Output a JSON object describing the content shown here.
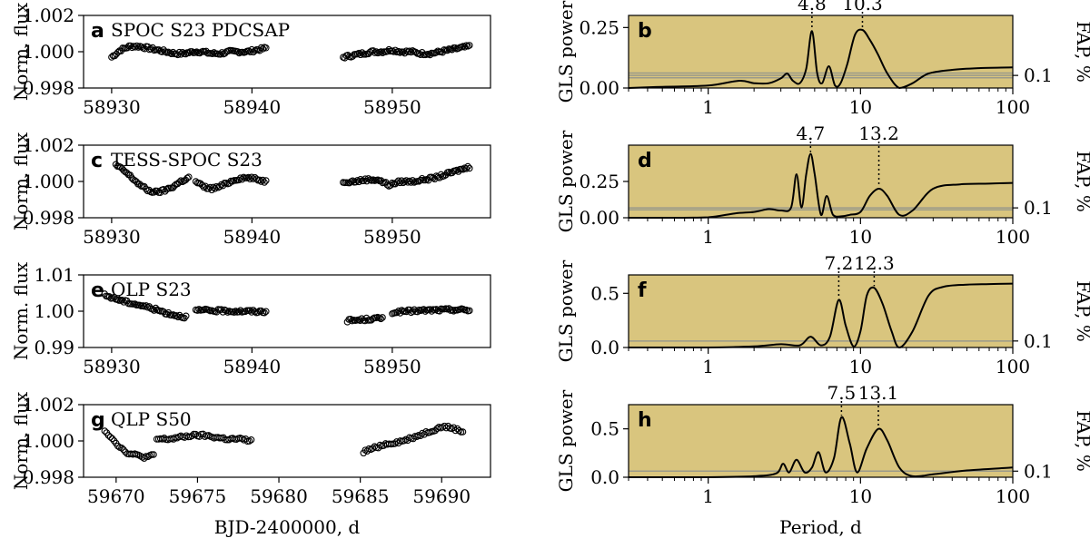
{
  "chart_data": [
    {
      "type": "scatter",
      "panel": "a",
      "label": "SPOC S23 PDCSAP",
      "ylabel": "Norm. flux",
      "xlim": [
        58928,
        58957
      ],
      "ylim": [
        0.998,
        1.002
      ],
      "xticks": [
        58930,
        58940,
        58950
      ],
      "yticks": [
        0.998,
        1.0,
        1.002
      ],
      "xtick_labels": [
        "58930",
        "58940",
        "58950"
      ],
      "ytick_labels": [
        "0.998",
        "1.000",
        "1.002"
      ],
      "segments": [
        {
          "x_start": 58930.0,
          "x_end": 58941.0,
          "y_points": [
            0.9997,
            1.0001,
            1.0003,
            1.0003,
            1.0002,
            1.0001,
            1.0,
            0.9999,
            0.9999,
            1.0,
            1.0,
            0.9999,
            0.9999,
            1.0,
            1.0,
            1.0,
            1.0001,
            1.0002
          ]
        },
        {
          "x_start": 58946.5,
          "x_end": 58955.5,
          "y_points": [
            0.9997,
            0.9998,
            0.9999,
            1.0,
            1.0,
            1.0001,
            1.0,
            1.0,
            0.9999,
            0.9999,
            1.0,
            1.0001,
            1.0002,
            1.0003
          ]
        }
      ]
    },
    {
      "type": "scatter",
      "panel": "c",
      "label": "TESS-SPOC S23",
      "ylabel": "Norm. flux",
      "xlim": [
        58928,
        58957
      ],
      "ylim": [
        0.998,
        1.002
      ],
      "xticks": [
        58930,
        58940,
        58950
      ],
      "yticks": [
        0.998,
        1.0,
        1.002
      ],
      "xtick_labels": [
        "58930",
        "58940",
        "58950"
      ],
      "ytick_labels": [
        "0.998",
        "1.000",
        "1.002"
      ],
      "segments": [
        {
          "x_start": 58930.3,
          "x_end": 58935.5,
          "y_points": [
            1.0009,
            1.0006,
            1.0002,
            0.9998,
            0.9995,
            0.9994,
            0.9995,
            0.9997,
            1.0,
            1.0002
          ]
        },
        {
          "x_start": 58936.0,
          "x_end": 58941.0,
          "y_points": [
            1.0,
            0.9997,
            0.9996,
            0.9997,
            0.9999,
            1.0001,
            1.0002,
            1.0002,
            1.0001,
            1.0
          ]
        },
        {
          "x_start": 58946.5,
          "x_end": 58955.5,
          "y_points": [
            1.0,
            1.0,
            1.0001,
            1.0001,
            0.9998,
            1.0,
            1.0,
            1.0001,
            1.0002,
            1.0004,
            1.0006,
            1.0008
          ]
        }
      ]
    },
    {
      "type": "scatter",
      "panel": "e",
      "label": "QLP S23",
      "ylabel": "Norm. flux",
      "xlim": [
        58928,
        58957
      ],
      "ylim": [
        0.99,
        1.01
      ],
      "xticks": [
        58930,
        58940,
        58950
      ],
      "yticks": [
        0.99,
        1.0,
        1.01
      ],
      "xtick_labels": [
        "58930",
        "58940",
        "58950"
      ],
      "ytick_labels": [
        "0.99",
        "1.00",
        "1.01"
      ],
      "segments": [
        {
          "x_start": 58929.5,
          "x_end": 58935.3,
          "y_points": [
            1.0044,
            1.0036,
            1.0028,
            1.0022,
            1.0016,
            1.001,
            1.0002,
            0.9994,
            0.9988,
            0.9984
          ]
        },
        {
          "x_start": 58936.0,
          "x_end": 58941.0,
          "y_points": [
            1.0002,
            1.0002,
            1.0001,
            1.0001,
            1.0,
            1.0,
            0.9999,
            0.9999
          ]
        },
        {
          "x_start": 58946.8,
          "x_end": 58949.3,
          "y_points": [
            0.9974,
            0.9975,
            0.9977,
            0.9979,
            0.9981
          ]
        },
        {
          "x_start": 58950.0,
          "x_end": 58955.5,
          "y_points": [
            0.9997,
            0.9999,
            1.0001,
            1.0002,
            1.0003,
            1.0004,
            1.0004,
            1.0003
          ]
        }
      ]
    },
    {
      "type": "scatter",
      "panel": "g",
      "label": "QLP S50",
      "ylabel": "Norm. flux",
      "xlabel": "BJD-2400000, d",
      "xlim": [
        59668,
        59693
      ],
      "ylim": [
        0.998,
        1.002
      ],
      "xticks": [
        59670,
        59675,
        59680,
        59685,
        59690
      ],
      "yticks": [
        0.998,
        1.0,
        1.002
      ],
      "xtick_labels": [
        "59670",
        "59675",
        "59680",
        "59685",
        "59690"
      ],
      "ytick_labels": [
        "0.998",
        "1.000",
        "1.002"
      ],
      "segments": [
        {
          "x_start": 59669.3,
          "x_end": 59672.3,
          "y_points": [
            1.0006,
            1.0001,
            0.9996,
            0.9993,
            0.9992,
            0.9991,
            0.9992
          ]
        },
        {
          "x_start": 59672.5,
          "x_end": 59678.3,
          "y_points": [
            1.0001,
            1.0001,
            1.0002,
            1.0003,
            1.0003,
            1.0002,
            1.0001,
            1.0001,
            1.0
          ]
        },
        {
          "x_start": 59685.2,
          "x_end": 59691.3,
          "y_points": [
            0.9994,
            0.9996,
            0.9998,
            0.9999,
            1.0,
            1.0002,
            1.0004,
            1.0006,
            1.0008,
            1.0007,
            1.0005
          ]
        }
      ]
    },
    {
      "type": "line",
      "panel": "b",
      "ylabel": "GLS power",
      "ylabel_right": "FAP, %",
      "right_tick_label": "0.1",
      "xscale": "log",
      "xlim": [
        0.3,
        100
      ],
      "ylim": [
        0,
        0.3
      ],
      "yticks": [
        0.0,
        0.25
      ],
      "ytick_labels": [
        "0.00",
        "0.25"
      ],
      "xtick_labels": [
        "1",
        "10",
        "100"
      ],
      "fap_levels": [
        0.042,
        0.052,
        0.062
      ],
      "peak_labels": [
        {
          "period": 4.8,
          "text": "4.8"
        },
        {
          "period": 10.3,
          "text": "10.3"
        }
      ],
      "curve_period": [
        0.3,
        0.5,
        1.0,
        1.6,
        2.0,
        2.5,
        3.0,
        3.3,
        3.6,
        4.0,
        4.4,
        4.8,
        5.2,
        5.6,
        6.2,
        6.8,
        7.4,
        8.2,
        9.2,
        10.3,
        11.5,
        13.0,
        15.0,
        18.0,
        22.0,
        28.0,
        40.0,
        60.0,
        100.0
      ],
      "curve_power": [
        0.0,
        0.005,
        0.01,
        0.03,
        0.02,
        0.02,
        0.04,
        0.06,
        0.03,
        0.02,
        0.08,
        0.235,
        0.06,
        0.02,
        0.09,
        0.01,
        0.02,
        0.1,
        0.22,
        0.24,
        0.2,
        0.14,
        0.06,
        0.0,
        0.02,
        0.06,
        0.075,
        0.082,
        0.085
      ]
    },
    {
      "type": "line",
      "panel": "d",
      "ylabel": "GLS power",
      "ylabel_right": "FAP, %",
      "right_tick_label": "0.1",
      "xscale": "log",
      "xlim": [
        0.3,
        100
      ],
      "ylim": [
        0,
        0.5
      ],
      "yticks": [
        0.0,
        0.25
      ],
      "ytick_labels": [
        "0.00",
        "0.25"
      ],
      "xtick_labels": [
        "1",
        "10",
        "100"
      ],
      "fap_levels": [
        0.055,
        0.068
      ],
      "peak_labels": [
        {
          "period": 4.7,
          "text": "4.7"
        },
        {
          "period": 13.2,
          "text": "13.2"
        }
      ],
      "curve_period": [
        0.3,
        0.6,
        1.0,
        1.5,
        2.0,
        2.5,
        3.0,
        3.5,
        3.8,
        4.1,
        4.4,
        4.7,
        5.0,
        5.5,
        6.0,
        6.6,
        7.5,
        8.5,
        10.0,
        11.5,
        13.2,
        15.0,
        18.0,
        22.0,
        30.0,
        45.0,
        70.0,
        100.0
      ],
      "curve_power": [
        0.0,
        0.0,
        0.003,
        0.03,
        0.04,
        0.06,
        0.05,
        0.07,
        0.3,
        0.07,
        0.3,
        0.44,
        0.3,
        0.02,
        0.15,
        0.02,
        0.01,
        0.02,
        0.04,
        0.15,
        0.2,
        0.15,
        0.02,
        0.05,
        0.2,
        0.23,
        0.235,
        0.24
      ]
    },
    {
      "type": "line",
      "panel": "f",
      "ylabel": "GLS power",
      "ylabel_right": "FAP, %",
      "right_tick_label": "0.1",
      "xscale": "log",
      "xlim": [
        0.3,
        100
      ],
      "ylim": [
        0,
        0.67
      ],
      "yticks": [
        0.0,
        0.5
      ],
      "ytick_labels": [
        "0.0",
        "0.5"
      ],
      "xtick_labels": [
        "1",
        "10",
        "100"
      ],
      "fap_levels": [
        0.06
      ],
      "peak_labels": [
        {
          "period": 7.2,
          "text": "7.2"
        },
        {
          "period": 12.3,
          "text": "12.3"
        }
      ],
      "curve_period": [
        0.3,
        1.0,
        2.0,
        3.0,
        4.0,
        4.7,
        5.5,
        6.3,
        7.2,
        8.0,
        9.0,
        10.0,
        11.0,
        12.3,
        14.0,
        16.0,
        18.0,
        22.0,
        28.0,
        35.0,
        50.0,
        70.0,
        100.0
      ],
      "curve_power": [
        0.0,
        0.0,
        0.01,
        0.03,
        0.02,
        0.1,
        0.02,
        0.1,
        0.44,
        0.2,
        0.01,
        0.15,
        0.48,
        0.55,
        0.4,
        0.15,
        0.0,
        0.15,
        0.48,
        0.56,
        0.58,
        0.585,
        0.59
      ]
    },
    {
      "type": "line",
      "panel": "h",
      "ylabel": "GLS power",
      "ylabel_right": "FAP, %",
      "right_tick_label": "0.1",
      "xscale": "log",
      "xlim": [
        0.3,
        100
      ],
      "ylim": [
        0,
        0.75
      ],
      "yticks": [
        0.0,
        0.5
      ],
      "ytick_labels": [
        "0.0",
        "0.5"
      ],
      "xtick_labels": [
        "1",
        "10",
        "100"
      ],
      "fap_levels": [
        0.063
      ],
      "peak_labels": [
        {
          "period": 7.5,
          "text": "7.5"
        },
        {
          "period": 13.1,
          "text": "13.1"
        }
      ],
      "curve_period": [
        0.3,
        1.0,
        2.0,
        2.8,
        3.1,
        3.4,
        3.8,
        4.3,
        4.8,
        5.3,
        5.9,
        6.7,
        7.5,
        8.5,
        9.5,
        11.0,
        13.1,
        15.0,
        18.0,
        22.0,
        30.0,
        50.0,
        100.0
      ],
      "curve_power": [
        0.0,
        0.0,
        0.01,
        0.04,
        0.14,
        0.05,
        0.18,
        0.05,
        0.1,
        0.26,
        0.05,
        0.2,
        0.62,
        0.35,
        0.05,
        0.3,
        0.5,
        0.38,
        0.1,
        0.01,
        0.03,
        0.07,
        0.1
      ]
    }
  ],
  "periodogram_xlabel": "Period, d"
}
